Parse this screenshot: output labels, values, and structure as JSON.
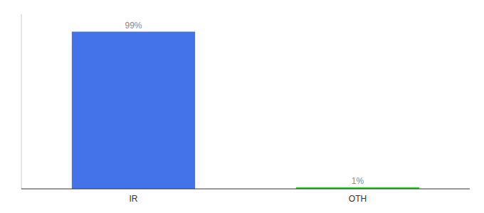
{
  "chart_data": {
    "type": "bar",
    "categories": [
      "IR",
      "OTH"
    ],
    "values": [
      99,
      1
    ],
    "value_labels": [
      "99%",
      "1%"
    ],
    "colors": [
      "#4472e8",
      "#22cc22"
    ],
    "ylim": [
      0,
      110
    ],
    "grid": false,
    "data_labels": true,
    "tick_labels": "x"
  }
}
